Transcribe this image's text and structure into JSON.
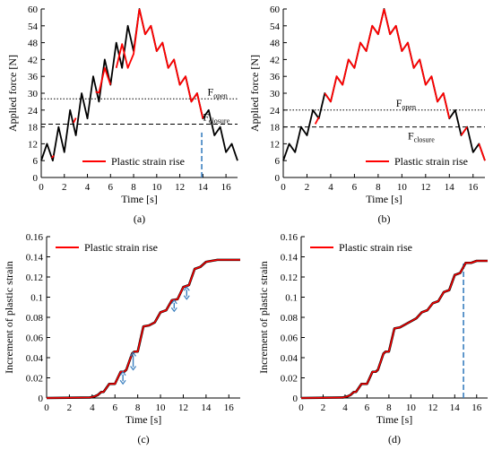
{
  "chart_data": [
    {
      "id": "a",
      "type": "line",
      "caption": "(a)",
      "xlabel": "Time [s]",
      "ylabel": "Applied force [N]",
      "xlim": [
        0,
        17
      ],
      "ylim": [
        0,
        60
      ],
      "xticks": [
        0,
        2,
        4,
        6,
        8,
        10,
        12,
        14,
        16
      ],
      "yticks": [
        0,
        6,
        12,
        18,
        24,
        30,
        36,
        42,
        48,
        54,
        60
      ],
      "grid": false,
      "legend": {
        "position": "lower-left",
        "label": "Plastic strain rise",
        "color": "#ff0000"
      },
      "black_x": [
        0,
        0.5,
        1,
        1.5,
        2,
        2.5,
        3,
        3.5,
        4,
        4.5,
        5,
        5.5,
        6,
        6.5,
        7,
        7.5,
        8,
        8.5,
        9,
        9.5,
        10,
        10.5,
        11,
        11.5,
        12,
        12.5,
        13,
        13.5,
        14,
        14.5,
        15,
        15.5,
        16,
        16.5,
        17
      ],
      "black_y": [
        6,
        12,
        6,
        18,
        9,
        24,
        15,
        30,
        21,
        36,
        27,
        42,
        33,
        48,
        39,
        54,
        45,
        60,
        51,
        54,
        45,
        48,
        39,
        42,
        33,
        36,
        27,
        30,
        21,
        24,
        15,
        18,
        9,
        12,
        6
      ],
      "red_segments": [
        [
          [
            0.9,
            7
          ],
          [
            1.1,
            7.8
          ]
        ],
        [
          [
            2.8,
            19.5
          ],
          [
            3,
            21.2
          ]
        ],
        [
          [
            4.7,
            30.5
          ],
          [
            5,
            30.2
          ],
          [
            5.5,
            39
          ],
          [
            6,
            33
          ]
        ],
        [
          [
            6.5,
            39
          ],
          [
            7,
            47.5
          ],
          [
            7.5,
            39
          ],
          [
            8,
            44
          ],
          [
            8.5,
            60
          ]
        ],
        [
          [
            8.5,
            60
          ],
          [
            9,
            51
          ],
          [
            9.5,
            54
          ],
          [
            10,
            45
          ],
          [
            10.5,
            48
          ],
          [
            11,
            39
          ],
          [
            11.5,
            42
          ],
          [
            12,
            33
          ],
          [
            12.5,
            36
          ],
          [
            13,
            27
          ],
          [
            13.5,
            30
          ],
          [
            14,
            21
          ]
        ],
        [
          [
            14.5,
            24
          ]
        ]
      ],
      "ref_lines": [
        {
          "y": 28,
          "label": "F",
          "sub": "open",
          "style": "dotted"
        },
        {
          "y": 19,
          "label": "F",
          "sub": "closure",
          "style": "dashed"
        }
      ],
      "vmark": {
        "x": 13.9,
        "y0": 0,
        "y1": 16,
        "color": "#3a7fbf"
      },
      "series": [
        {
          "name": "",
          "color": "#000000"
        },
        {
          "name": "Plastic strain rise",
          "color": "#ff0000"
        }
      ]
    },
    {
      "id": "b",
      "type": "line",
      "caption": "(b)",
      "xlabel": "Time [s]",
      "ylabel": "Applied force [N]",
      "xlim": [
        0,
        17
      ],
      "ylim": [
        0,
        60
      ],
      "xticks": [
        0,
        2,
        4,
        6,
        8,
        10,
        12,
        14,
        16
      ],
      "yticks": [
        0,
        6,
        12,
        18,
        24,
        30,
        36,
        42,
        48,
        54,
        60
      ],
      "grid": false,
      "legend": {
        "position": "lower-right",
        "label": "Plastic strain rise",
        "color": "#ff0000"
      },
      "black_x": [
        0,
        0.5,
        1,
        1.5,
        2,
        2.5,
        3,
        3.5,
        4,
        4.5,
        5,
        5.5,
        6,
        6.5,
        7,
        7.5,
        8,
        8.5,
        9,
        9.5,
        10,
        10.5,
        11,
        11.5,
        12,
        12.5,
        13,
        13.5,
        14,
        14.5,
        15,
        15.5,
        16,
        16.5,
        17
      ],
      "black_y": [
        6,
        12,
        9,
        18,
        15,
        24,
        21,
        30,
        27,
        36,
        33,
        42,
        39,
        48,
        45,
        54,
        51,
        60,
        51,
        54,
        45,
        48,
        39,
        42,
        33,
        36,
        27,
        30,
        21,
        24,
        15,
        18,
        9,
        12,
        6
      ],
      "red_segments": [
        [
          [
            2.7,
            19
          ],
          [
            3,
            21.5
          ]
        ],
        [
          [
            3.5,
            30
          ],
          [
            4,
            27
          ],
          [
            4.5,
            36
          ],
          [
            5,
            33
          ],
          [
            5.5,
            42
          ],
          [
            6,
            39
          ],
          [
            6.5,
            48
          ],
          [
            7,
            45
          ],
          [
            7.5,
            54
          ],
          [
            8,
            51
          ],
          [
            8.5,
            60
          ]
        ],
        [
          [
            8.5,
            60
          ],
          [
            9,
            51
          ],
          [
            9.5,
            54
          ],
          [
            10,
            45
          ],
          [
            10.5,
            48
          ],
          [
            11,
            39
          ],
          [
            11.5,
            42
          ],
          [
            12,
            33
          ],
          [
            12.5,
            36
          ],
          [
            13,
            27
          ],
          [
            13.5,
            30
          ],
          [
            14,
            21
          ]
        ],
        [
          [
            15,
            15
          ],
          [
            15.5,
            18
          ]
        ],
        [
          [
            16.5,
            12
          ],
          [
            17,
            6
          ]
        ]
      ],
      "ref_lines": [
        {
          "y": 24,
          "label": "F",
          "sub": "open",
          "style": "dotted"
        },
        {
          "y": 18,
          "label": "F",
          "sub": "closure",
          "style": "dashed"
        }
      ],
      "series": [
        {
          "name": "",
          "color": "#000000"
        },
        {
          "name": "Plastic strain rise",
          "color": "#ff0000"
        }
      ]
    },
    {
      "id": "c",
      "type": "line",
      "caption": "(c)",
      "xlabel": "Time [s]",
      "ylabel": "Increment of plastic strain",
      "xlim": [
        0,
        17
      ],
      "ylim": [
        0,
        0.16
      ],
      "xticks": [
        0,
        2,
        4,
        6,
        8,
        10,
        12,
        14,
        16
      ],
      "yticks": [
        0,
        0.02,
        0.04,
        0.06,
        0.08,
        0.1,
        0.12,
        0.14,
        0.16
      ],
      "yfmt": "dec",
      "grid": false,
      "legend": {
        "position": "top-left",
        "label": "Plastic strain rise",
        "color": "#ff0000"
      },
      "x": [
        0,
        3.8,
        4.2,
        4.5,
        4.8,
        5.0,
        5.5,
        5.8,
        6.0,
        6.5,
        6.8,
        7.0,
        7.5,
        7.7,
        8.0,
        8.5,
        9.0,
        9.5,
        10.0,
        10.5,
        11.0,
        11.5,
        12.0,
        12.5,
        13.0,
        13.5,
        14.0,
        15.0,
        16.0,
        17.0
      ],
      "y": [
        0,
        0.0005,
        0.0015,
        0.003,
        0.006,
        0.006,
        0.014,
        0.014,
        0.014,
        0.026,
        0.026,
        0.028,
        0.044,
        0.046,
        0.046,
        0.071,
        0.072,
        0.075,
        0.085,
        0.087,
        0.097,
        0.098,
        0.11,
        0.112,
        0.128,
        0.13,
        0.135,
        0.137,
        0.137,
        0.137
      ],
      "arrows": [
        {
          "x": 6.7,
          "y0": 0.014,
          "y1": 0.026
        },
        {
          "x": 7.6,
          "y0": 0.028,
          "y1": 0.045
        },
        {
          "x": 11.2,
          "y0": 0.086,
          "y1": 0.097
        },
        {
          "x": 12.3,
          "y0": 0.098,
          "y1": 0.11
        }
      ],
      "series": [
        {
          "name": "Plastic strain rise",
          "color": "#ff0000"
        }
      ]
    },
    {
      "id": "d",
      "type": "line",
      "caption": "(d)",
      "xlabel": "Time [s]",
      "ylabel": "Increment of plastic strain",
      "xlim": [
        0,
        17
      ],
      "ylim": [
        0,
        0.16
      ],
      "xticks": [
        0,
        2,
        4,
        6,
        8,
        10,
        12,
        14,
        16
      ],
      "yticks": [
        0,
        0.02,
        0.04,
        0.06,
        0.08,
        0.1,
        0.12,
        0.14,
        0.16
      ],
      "yfmt": "dec",
      "grid": false,
      "legend": {
        "position": "top-left",
        "label": "Plastic strain rise",
        "color": "#ff0000"
      },
      "x": [
        0,
        3.8,
        4.2,
        4.5,
        4.8,
        5.0,
        5.5,
        5.8,
        6.0,
        6.5,
        6.8,
        7.0,
        7.5,
        7.7,
        8.0,
        8.5,
        9.0,
        9.5,
        10.0,
        10.5,
        11.0,
        11.5,
        12.0,
        12.5,
        13.0,
        13.5,
        14.0,
        14.5,
        14.9,
        15.0,
        15.5,
        16.0,
        17.0
      ],
      "y": [
        0,
        0.0005,
        0.0015,
        0.003,
        0.006,
        0.006,
        0.014,
        0.014,
        0.014,
        0.026,
        0.026,
        0.028,
        0.044,
        0.046,
        0.046,
        0.069,
        0.07,
        0.073,
        0.076,
        0.079,
        0.085,
        0.087,
        0.094,
        0.096,
        0.105,
        0.107,
        0.122,
        0.124,
        0.132,
        0.134,
        0.134,
        0.136,
        0.136
      ],
      "vmark": {
        "x": 14.8,
        "y0": 0,
        "y1": 0.134,
        "color": "#3a7fbf"
      },
      "series": [
        {
          "name": "Plastic strain rise",
          "color": "#ff0000"
        }
      ]
    }
  ]
}
